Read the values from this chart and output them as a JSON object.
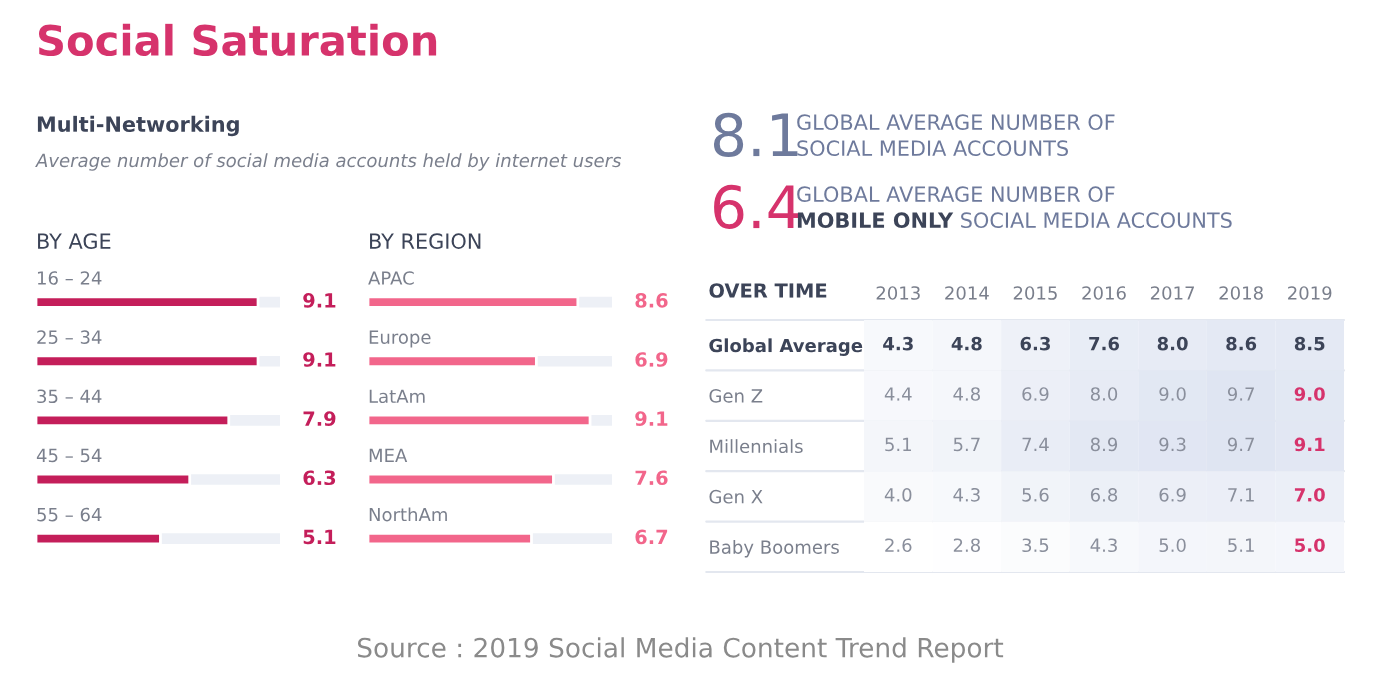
{
  "chart_data": [
    {
      "type": "other",
      "title": "Social Saturation",
      "subtitle": "Multi-Networking",
      "annotations": [
        "Average number of social media accounts held by internet users",
        "Source : 2019 Social Media Content Trend Report"
      ]
    },
    {
      "type": "bar",
      "orientation": "horizontal",
      "title": "BY AGE",
      "categories": [
        "16 – 24",
        "25 – 34",
        "35 – 44",
        "45 – 54",
        "55 – 64"
      ],
      "values": [
        9.1,
        9.1,
        7.9,
        6.3,
        5.1
      ],
      "color": "#c41e5a",
      "xlim": [
        0,
        10
      ],
      "data_labels": true
    },
    {
      "type": "bar",
      "orientation": "horizontal",
      "title": "BY REGION",
      "categories": [
        "APAC",
        "Europe",
        "LatAm",
        "MEA",
        "NorthAm"
      ],
      "values": [
        8.6,
        6.9,
        9.1,
        7.6,
        6.7
      ],
      "color": "#f2668b",
      "xlim": [
        0,
        10
      ],
      "data_labels": true
    },
    {
      "type": "other",
      "annotations": [
        "8.1",
        "GLOBAL AVERAGE NUMBER OF",
        "SOCIAL MEDIA ACCOUNTS",
        "6.4",
        "GLOBAL AVERAGE NUMBER OF",
        "MOBILE ONLY",
        "SOCIAL MEDIA ACCOUNTS"
      ]
    },
    {
      "type": "heatmap",
      "title": "OVER TIME",
      "data_labels": true,
      "categories": [
        "2013",
        "2014",
        "2015",
        "2016",
        "2017",
        "2018",
        "2019"
      ],
      "y_categories": [
        "Global Average",
        "Gen Z",
        "Millennials",
        "Gen X",
        "Baby Boomers"
      ],
      "cells": [
        [
          4.3,
          4.8,
          6.3,
          7.6,
          8.0,
          8.6,
          8.5
        ],
        [
          4.4,
          4.8,
          6.9,
          8.0,
          9.0,
          9.7,
          9.0
        ],
        [
          5.1,
          5.7,
          7.4,
          8.9,
          9.3,
          9.7,
          9.1
        ],
        [
          4.0,
          4.3,
          5.6,
          6.8,
          6.9,
          7.1,
          7.0
        ],
        [
          2.6,
          2.8,
          3.5,
          4.3,
          5.0,
          5.1,
          5.0
        ]
      ],
      "cell_labels": [
        [
          "4.3",
          "4.8",
          "6.3",
          "7.6",
          "8.0",
          "8.6",
          "8.5"
        ],
        [
          "4.4",
          "4.8",
          "6.9",
          "8.0",
          "9.0",
          "9.7",
          "9.0"
        ],
        [
          "5.1",
          "5.7",
          "7.4",
          "8.9",
          "9.3",
          "9.7",
          "9.1"
        ],
        [
          "4.0",
          "4.3",
          "5.6",
          "6.8",
          "6.9",
          "7.1",
          "7.0"
        ],
        [
          "2.6",
          "2.8",
          "3.5",
          "4.3",
          "5.0",
          "5.1",
          "5.0"
        ]
      ]
    }
  ]
}
